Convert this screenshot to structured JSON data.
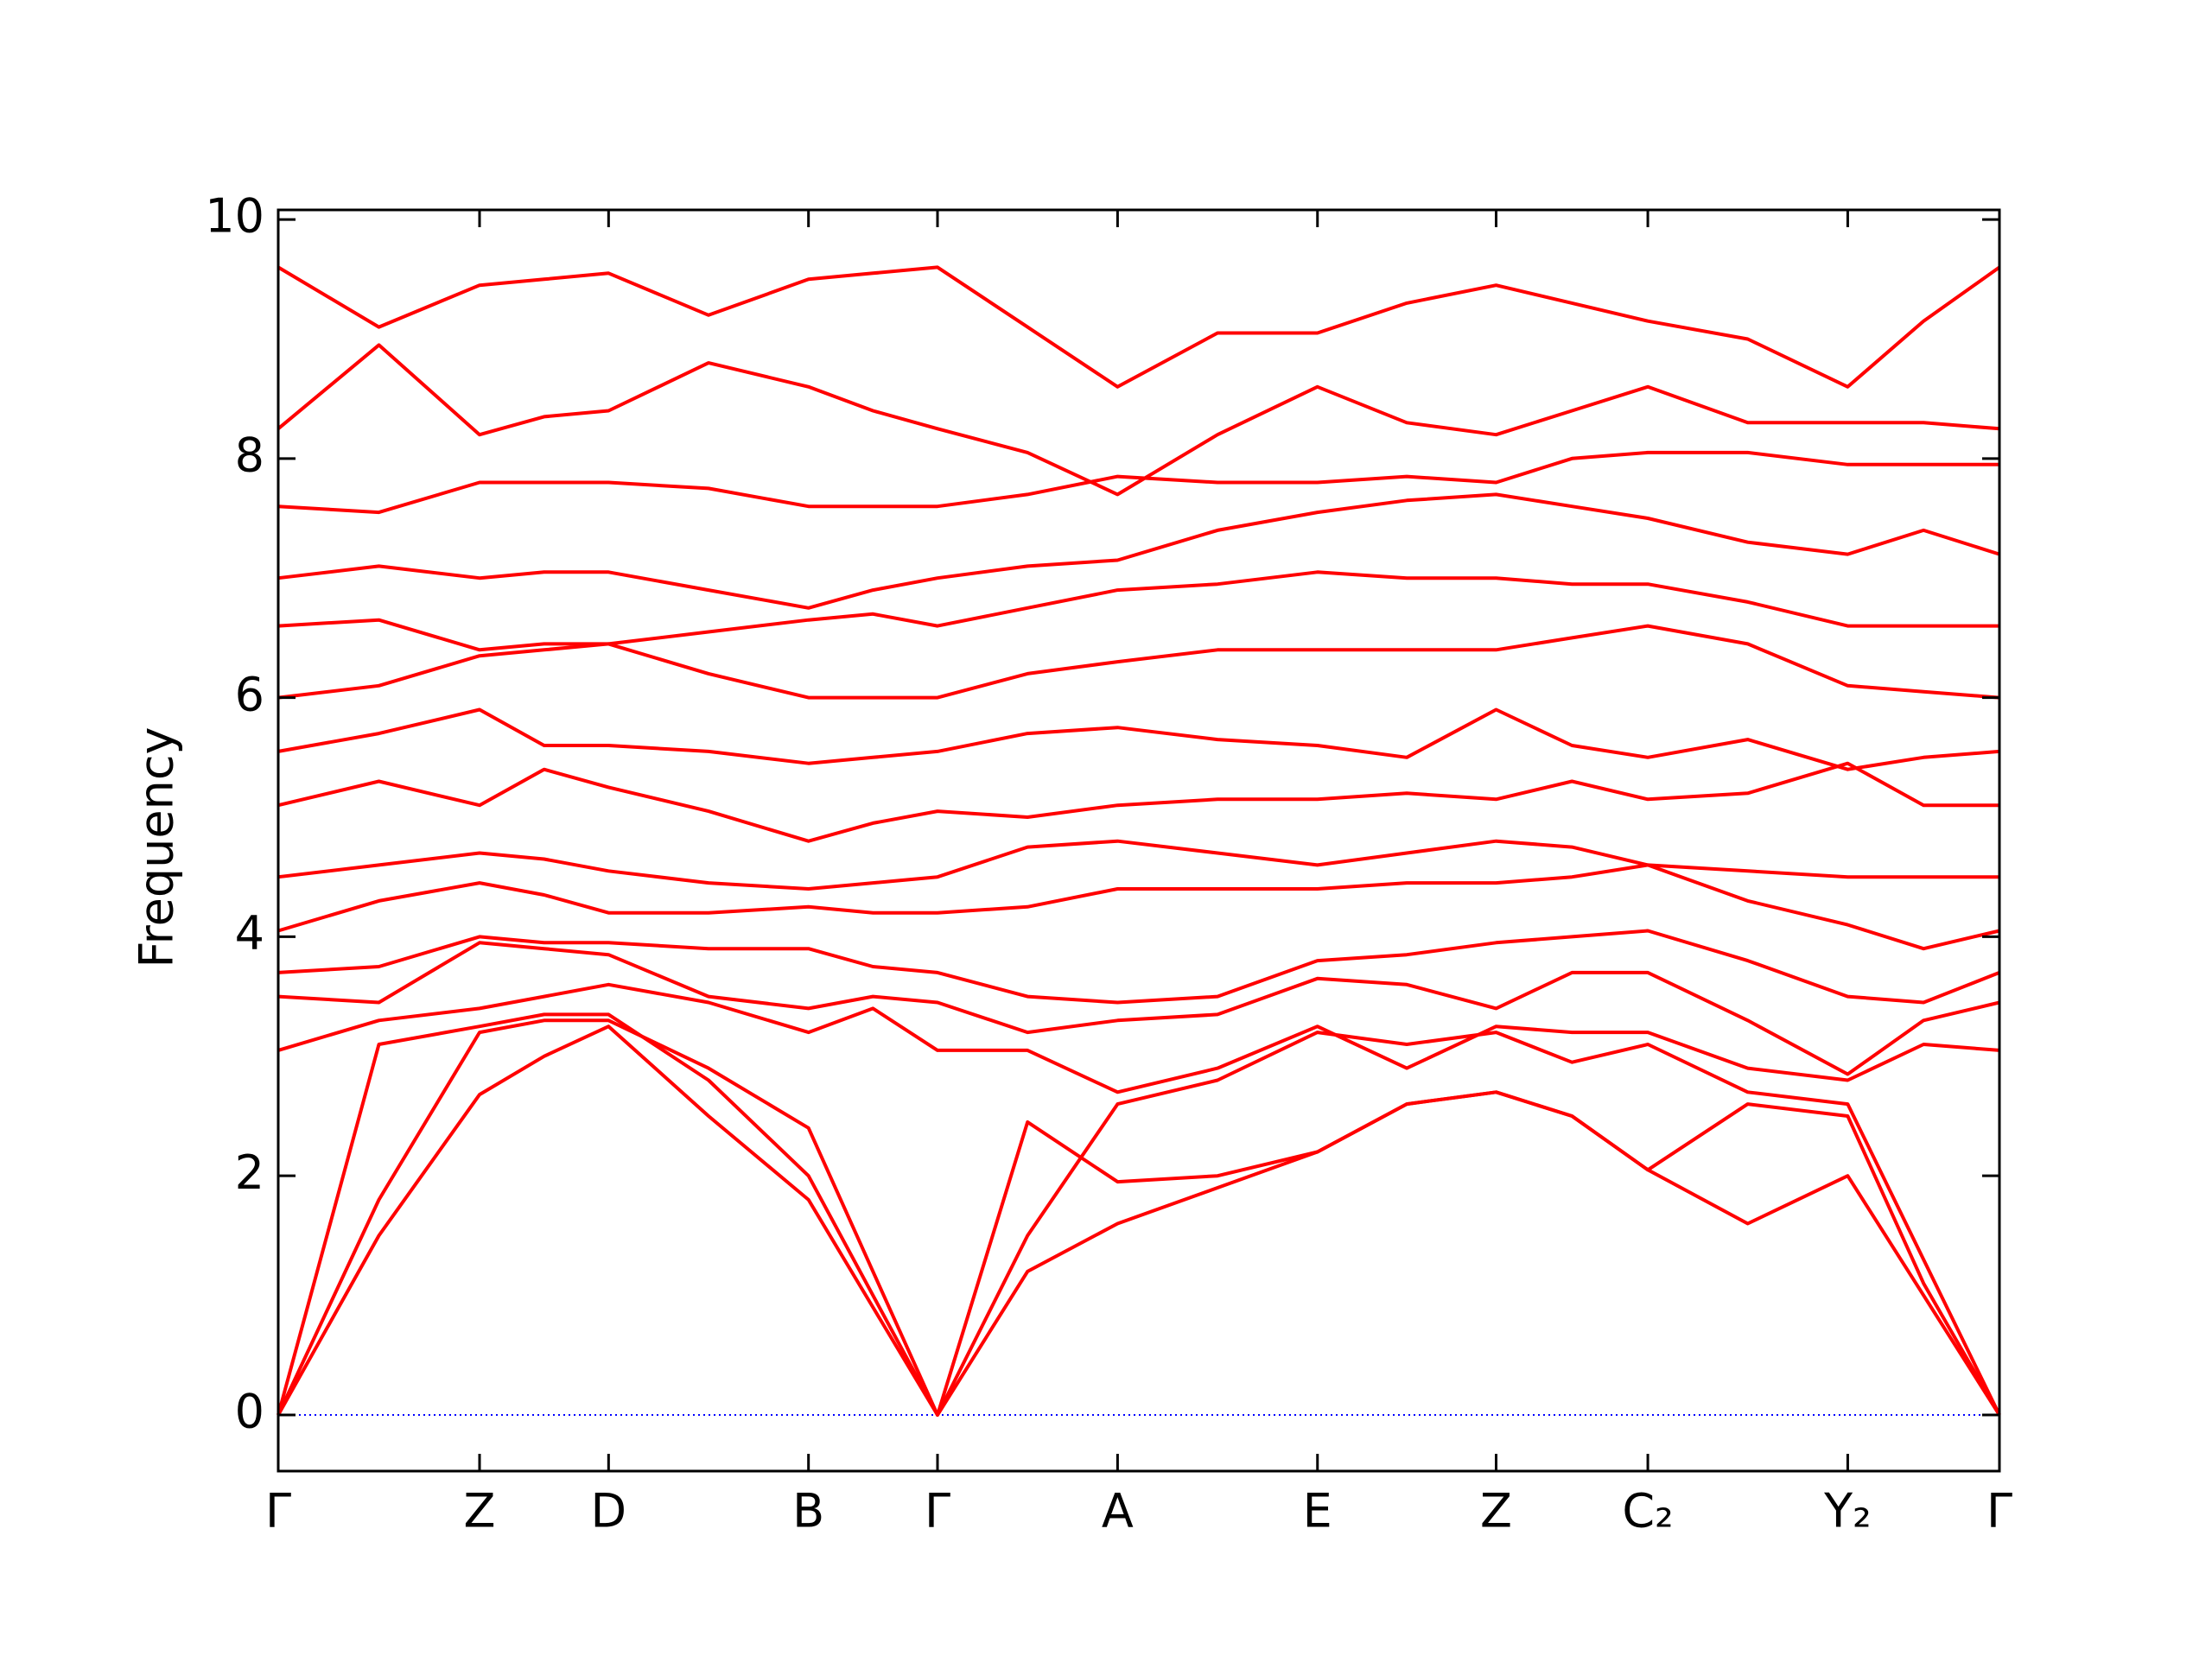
{
  "chart_data": {
    "type": "line",
    "y_label": "Frequency",
    "color": "#ff0000",
    "x": [
      0,
      0.71,
      1.42,
      1.875,
      2.33,
      3.035,
      3.74,
      4.195,
      4.65,
      5.285,
      5.92,
      6.625,
      7.33,
      7.96,
      8.59,
      9.125,
      9.66,
      10.365,
      11.07,
      11.605,
      12.14
    ],
    "xlim": [
      0,
      12.14
    ],
    "ylim": [
      -0.47,
      10.08
    ],
    "xticks": [
      {
        "value": 0,
        "label": "Γ"
      },
      {
        "value": 1.42,
        "label": "Z"
      },
      {
        "value": 2.33,
        "label": "D"
      },
      {
        "value": 3.74,
        "label": "B"
      },
      {
        "value": 4.65,
        "label": "Γ"
      },
      {
        "value": 5.92,
        "label": "A"
      },
      {
        "value": 7.33,
        "label": "E"
      },
      {
        "value": 8.59,
        "label": "Z"
      },
      {
        "value": 9.66,
        "label": "C₂"
      },
      {
        "value": 11.07,
        "label": "Y₂"
      },
      {
        "value": 12.14,
        "label": "Γ"
      }
    ],
    "yticks": [
      0,
      2,
      4,
      6,
      8,
      10
    ],
    "reference_line": {
      "y": 0,
      "color": "#0000ff"
    },
    "series": [
      {
        "values": [
          0,
          1.5,
          2.68,
          3.0,
          3.25,
          2.5,
          1.8,
          0.9,
          0,
          1.2,
          1.6,
          1.9,
          2.2,
          2.6,
          2.7,
          2.5,
          2.05,
          1.6,
          2.0,
          1.0,
          0
        ]
      },
      {
        "values": [
          0,
          3.1,
          3.25,
          3.35,
          3.35,
          2.8,
          2.0,
          1.0,
          0,
          2.45,
          1.95,
          2.0,
          2.2,
          2.6,
          2.7,
          2.5,
          2.05,
          2.6,
          2.5,
          1.1,
          0
        ]
      },
      {
        "values": [
          0,
          1.8,
          3.2,
          3.3,
          3.3,
          2.9,
          2.4,
          1.2,
          0,
          1.5,
          2.6,
          2.8,
          3.2,
          3.1,
          3.2,
          2.95,
          3.1,
          2.7,
          2.6,
          1.3,
          0
        ]
      },
      {
        "values": [
          3.05,
          3.3,
          3.4,
          3.5,
          3.6,
          3.45,
          3.2,
          3.4,
          3.05,
          3.05,
          2.7,
          2.9,
          3.25,
          2.9,
          3.25,
          3.2,
          3.2,
          2.9,
          2.8,
          3.1,
          3.05
        ]
      },
      {
        "values": [
          3.5,
          3.45,
          3.95,
          3.9,
          3.85,
          3.5,
          3.4,
          3.5,
          3.45,
          3.2,
          3.3,
          3.35,
          3.65,
          3.6,
          3.4,
          3.7,
          3.7,
          3.3,
          2.85,
          3.3,
          3.45
        ]
      },
      {
        "values": [
          3.7,
          3.75,
          4.0,
          3.95,
          3.95,
          3.9,
          3.9,
          3.75,
          3.7,
          3.5,
          3.45,
          3.5,
          3.8,
          3.85,
          3.95,
          4.0,
          4.05,
          3.8,
          3.5,
          3.45,
          3.7
        ]
      },
      {
        "values": [
          4.05,
          4.3,
          4.45,
          4.35,
          4.2,
          4.2,
          4.25,
          4.2,
          4.2,
          4.25,
          4.4,
          4.4,
          4.4,
          4.45,
          4.45,
          4.5,
          4.6,
          4.3,
          4.1,
          3.9,
          4.05
        ]
      },
      {
        "values": [
          4.5,
          4.6,
          4.7,
          4.65,
          4.55,
          4.45,
          4.4,
          4.45,
          4.5,
          4.75,
          4.8,
          4.7,
          4.6,
          4.7,
          4.8,
          4.75,
          4.6,
          4.55,
          4.5,
          4.5,
          4.5
        ]
      },
      {
        "values": [
          5.1,
          5.3,
          5.1,
          5.4,
          5.25,
          5.05,
          4.8,
          4.95,
          5.05,
          5.0,
          5.1,
          5.15,
          5.15,
          5.2,
          5.15,
          5.3,
          5.15,
          5.2,
          5.45,
          5.1,
          5.1
        ]
      },
      {
        "values": [
          5.55,
          5.7,
          5.9,
          5.6,
          5.6,
          5.55,
          5.45,
          5.5,
          5.55,
          5.7,
          5.75,
          5.65,
          5.6,
          5.5,
          5.9,
          5.6,
          5.5,
          5.65,
          5.4,
          5.5,
          5.55
        ]
      },
      {
        "values": [
          6.0,
          6.1,
          6.35,
          6.4,
          6.45,
          6.2,
          6.0,
          6.0,
          6.0,
          6.2,
          6.3,
          6.4,
          6.4,
          6.4,
          6.4,
          6.5,
          6.6,
          6.45,
          6.1,
          6.05,
          6.0
        ]
      },
      {
        "values": [
          6.6,
          6.65,
          6.4,
          6.45,
          6.45,
          6.55,
          6.65,
          6.7,
          6.6,
          6.75,
          6.9,
          6.95,
          7.05,
          7.0,
          7.0,
          6.95,
          6.95,
          6.8,
          6.6,
          6.6,
          6.6
        ]
      },
      {
        "values": [
          7.0,
          7.1,
          7.0,
          7.05,
          7.05,
          6.9,
          6.75,
          6.9,
          7.0,
          7.1,
          7.15,
          7.4,
          7.55,
          7.65,
          7.7,
          7.6,
          7.5,
          7.3,
          7.2,
          7.4,
          7.2
        ]
      },
      {
        "values": [
          7.6,
          7.55,
          7.8,
          7.8,
          7.8,
          7.75,
          7.6,
          7.6,
          7.6,
          7.7,
          7.85,
          7.8,
          7.8,
          7.85,
          7.8,
          8.0,
          8.05,
          8.05,
          7.95,
          7.95,
          7.95
        ]
      },
      {
        "values": [
          8.25,
          8.95,
          8.2,
          8.35,
          8.4,
          8.8,
          8.6,
          8.4,
          8.25,
          8.05,
          7.7,
          8.2,
          8.6,
          8.3,
          8.2,
          8.4,
          8.6,
          8.3,
          8.3,
          8.3,
          8.25
        ]
      },
      {
        "values": [
          9.6,
          9.1,
          9.45,
          9.5,
          9.55,
          9.2,
          9.5,
          9.55,
          9.6,
          9.1,
          8.6,
          9.05,
          9.05,
          9.3,
          9.45,
          9.3,
          9.15,
          9.0,
          8.6,
          9.15,
          9.6
        ]
      }
    ]
  }
}
